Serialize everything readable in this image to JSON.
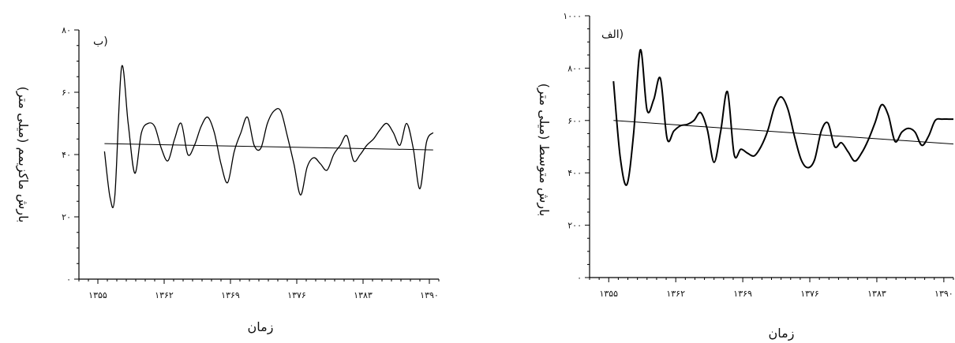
{
  "chart_data": [
    {
      "type": "line",
      "panel_label": "ب)",
      "xlabel": "زمان",
      "ylabel": "بارش ماکزیمم (میلی متر)",
      "ylim": [
        0,
        80
      ],
      "yticks": [
        "۰",
        "۲۰",
        "۴۰",
        "۶۰",
        "۸۰"
      ],
      "ytick_values": [
        0,
        20,
        40,
        60,
        80
      ],
      "xlim": [
        1353,
        1391
      ],
      "xticks": [
        "۱۳۵۵",
        "۱۳۶۲",
        "۱۳۶۹",
        "۱۳۷۶",
        "۱۳۸۳",
        "۱۳۹۰"
      ],
      "xtick_values": [
        1355,
        1362,
        1369,
        1376,
        1383,
        1390
      ],
      "grid": false,
      "series": [
        {
          "x": [
            1355.7,
            1356.3,
            1356.8,
            1357.5,
            1358.2,
            1358.9,
            1359.6,
            1360.3,
            1361.0,
            1361.7,
            1362.4,
            1363.1,
            1363.8,
            1364.5,
            1365.2,
            1365.9,
            1366.6,
            1367.3,
            1368.0,
            1368.7,
            1369.4,
            1370.1,
            1370.8,
            1371.5,
            1372.2,
            1372.9,
            1373.6,
            1374.3,
            1375.0,
            1375.7,
            1376.4,
            1377.1,
            1377.8,
            1378.5,
            1379.2,
            1379.9,
            1380.6,
            1381.3,
            1382.0,
            1382.7,
            1383.4,
            1384.1,
            1384.8,
            1385.5,
            1386.2,
            1386.9,
            1387.6,
            1388.3,
            1389.0,
            1389.7,
            1390.4
          ],
          "y": [
            41,
            26,
            27,
            68,
            50,
            34,
            47,
            50,
            49,
            42,
            38,
            45,
            50,
            40,
            43,
            49,
            52,
            47,
            37,
            31,
            41,
            47,
            52,
            43,
            42,
            50,
            54,
            54,
            46,
            37,
            27,
            36,
            39,
            37,
            35,
            40,
            43,
            46,
            38,
            40,
            43,
            45,
            48,
            50,
            47,
            43,
            50,
            42,
            29,
            44,
            47
          ]
        },
        {
          "name": "trend",
          "x": [
            1355.7,
            1390.4
          ],
          "y": [
            43.5,
            41.5
          ]
        }
      ]
    },
    {
      "type": "line",
      "panel_label": "الف)",
      "xlabel": "زمان",
      "ylabel": "بارش متوسط (میلی متر)",
      "ylim": [
        0,
        1000
      ],
      "yticks": [
        "۰",
        "۲۰۰",
        "۴۰۰",
        "۶۰۰",
        "۸۰۰",
        "۱۰۰۰"
      ],
      "ytick_values": [
        0,
        200,
        400,
        600,
        800,
        1000
      ],
      "xlim": [
        1353,
        1391
      ],
      "xticks": [
        "۱۳۵۵",
        "۱۳۶۲",
        "۱۳۶۹",
        "۱۳۷۶",
        "۱۳۸۳",
        "۱۳۹۰"
      ],
      "xtick_values": [
        1355,
        1362,
        1369,
        1376,
        1383,
        1390
      ],
      "grid": false,
      "series": [
        {
          "x": [
            1355.5,
            1356.2,
            1356.9,
            1357.6,
            1358.3,
            1359.0,
            1359.7,
            1360.4,
            1361.1,
            1361.8,
            1362.5,
            1363.2,
            1363.9,
            1364.6,
            1365.3,
            1366.0,
            1366.7,
            1367.4,
            1368.1,
            1368.8,
            1369.5,
            1370.2,
            1370.9,
            1371.6,
            1372.3,
            1373.0,
            1373.7,
            1374.4,
            1375.1,
            1375.8,
            1376.5,
            1377.2,
            1377.9,
            1378.6,
            1379.3,
            1380.0,
            1380.7,
            1381.4,
            1382.1,
            1382.8,
            1383.5,
            1384.2,
            1384.9,
            1385.6,
            1386.3,
            1387.0,
            1387.7,
            1388.4,
            1389.1,
            1389.8,
            1390.5,
            1391.0
          ],
          "y": [
            750,
            460,
            355,
            550,
            870,
            640,
            680,
            760,
            530,
            560,
            580,
            585,
            600,
            630,
            565,
            440,
            560,
            710,
            470,
            490,
            475,
            465,
            500,
            560,
            650,
            690,
            645,
            540,
            450,
            420,
            450,
            560,
            590,
            500,
            515,
            480,
            445,
            475,
            525,
            590,
            660,
            620,
            520,
            555,
            570,
            555,
            505,
            540,
            600,
            605,
            605,
            605
          ]
        },
        {
          "name": "trend",
          "x": [
            1355.5,
            1391.0
          ],
          "y": [
            600,
            510
          ]
        }
      ]
    }
  ]
}
